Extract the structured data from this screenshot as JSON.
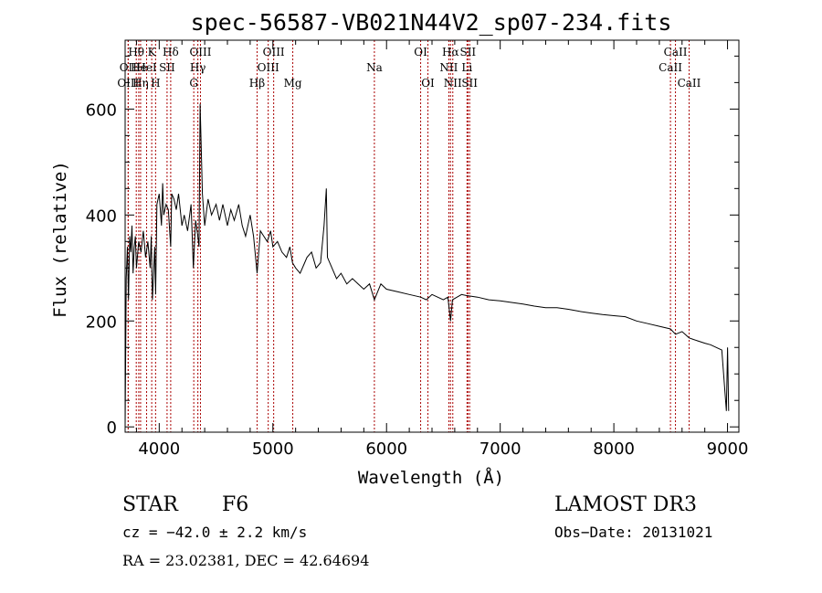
{
  "chart_data": {
    "type": "line",
    "title": "spec-56587-VB021N44V2_sp07-234.fits",
    "xlabel": "Wavelength (Å)",
    "ylabel": "Flux (relative)",
    "xlim": [
      3700,
      9100
    ],
    "ylim": [
      -10,
      730
    ],
    "xticks": [
      4000,
      5000,
      6000,
      7000,
      8000,
      9000
    ],
    "yticks": [
      0,
      200,
      400,
      600
    ],
    "series": [
      {
        "name": "flux",
        "x": [
          3700,
          3710,
          3720,
          3730,
          3740,
          3750,
          3760,
          3770,
          3780,
          3790,
          3800,
          3820,
          3840,
          3860,
          3880,
          3900,
          3920,
          3930,
          3940,
          3960,
          3968,
          3980,
          4000,
          4020,
          4030,
          4040,
          4060,
          4080,
          4101,
          4110,
          4130,
          4150,
          4170,
          4200,
          4220,
          4250,
          4280,
          4300,
          4320,
          4340,
          4350,
          4360,
          4380,
          4400,
          4430,
          4460,
          4500,
          4530,
          4560,
          4600,
          4630,
          4660,
          4700,
          4730,
          4760,
          4800,
          4830,
          4861,
          4890,
          4920,
          4950,
          4980,
          5000,
          5040,
          5080,
          5120,
          5150,
          5172,
          5200,
          5240,
          5280,
          5300,
          5340,
          5380,
          5420,
          5450,
          5470,
          5480,
          5520,
          5560,
          5600,
          5650,
          5700,
          5750,
          5800,
          5850,
          5893,
          5950,
          6000,
          6100,
          6200,
          6300,
          6350,
          6400,
          6450,
          6500,
          6540,
          6563,
          6580,
          6620,
          6660,
          6700,
          6800,
          6900,
          7000,
          7100,
          7200,
          7300,
          7400,
          7500,
          7600,
          7700,
          7800,
          7900,
          8000,
          8100,
          8200,
          8300,
          8400,
          8498,
          8542,
          8600,
          8662,
          8700,
          8800,
          8850,
          8900,
          8950,
          8990,
          9000,
          9010
        ],
        "y": [
          0,
          280,
          340,
          240,
          360,
          330,
          380,
          290,
          340,
          360,
          300,
          350,
          330,
          370,
          320,
          350,
          300,
          360,
          240,
          340,
          250,
          420,
          440,
          380,
          460,
          400,
          420,
          410,
          340,
          440,
          430,
          410,
          440,
          380,
          400,
          370,
          420,
          300,
          390,
          360,
          340,
          610,
          440,
          380,
          430,
          400,
          420,
          390,
          420,
          380,
          410,
          390,
          420,
          380,
          360,
          400,
          360,
          290,
          370,
          360,
          350,
          370,
          340,
          350,
          330,
          320,
          340,
          310,
          300,
          290,
          310,
          320,
          330,
          300,
          310,
          380,
          450,
          320,
          300,
          280,
          290,
          270,
          280,
          270,
          260,
          270,
          240,
          270,
          260,
          255,
          250,
          245,
          240,
          250,
          245,
          240,
          245,
          200,
          240,
          245,
          250,
          248,
          245,
          240,
          238,
          235,
          232,
          228,
          225,
          225,
          222,
          218,
          215,
          212,
          210,
          208,
          200,
          195,
          190,
          185,
          175,
          180,
          168,
          165,
          158,
          155,
          150,
          145,
          30,
          150,
          30
        ]
      }
    ],
    "line_labels": [
      {
        "label": "Hθ",
        "x": 3798,
        "row": 1
      },
      {
        "label": "OII",
        "x": 3727,
        "row": 2
      },
      {
        "label": "OIII",
        "x": 3727,
        "row": 3
      },
      {
        "label": "He",
        "x": 3820,
        "row": 2
      },
      {
        "label": "Hη",
        "x": 3836,
        "row": 3
      },
      {
        "label": "K",
        "x": 3934,
        "row": 1
      },
      {
        "label": "HeI",
        "x": 3889,
        "row": 2
      },
      {
        "label": "H",
        "x": 3968,
        "row": 3
      },
      {
        "label": "SII",
        "x": 4069,
        "row": 2
      },
      {
        "label": "Hδ",
        "x": 4101,
        "row": 1
      },
      {
        "label": "OIII",
        "x": 4363,
        "row": 1
      },
      {
        "label": "Hγ",
        "x": 4340,
        "row": 2
      },
      {
        "label": "G",
        "x": 4304,
        "row": 3
      },
      {
        "label": "OIII",
        "x": 5007,
        "row": 1
      },
      {
        "label": "OIII",
        "x": 4959,
        "row": 2
      },
      {
        "label": "Hβ",
        "x": 4861,
        "row": 3
      },
      {
        "label": "Mg",
        "x": 5175,
        "row": 3
      },
      {
        "label": "Na",
        "x": 5893,
        "row": 2
      },
      {
        "label": "OI",
        "x": 6300,
        "row": 1
      },
      {
        "label": "OI",
        "x": 6364,
        "row": 3
      },
      {
        "label": "Hα",
        "x": 6563,
        "row": 1
      },
      {
        "label": "SII",
        "x": 6716,
        "row": 1
      },
      {
        "label": "NII",
        "x": 6548,
        "row": 2
      },
      {
        "label": "Li",
        "x": 6708,
        "row": 2
      },
      {
        "label": "NII",
        "x": 6583,
        "row": 3
      },
      {
        "label": "SII",
        "x": 6731,
        "row": 3
      },
      {
        "label": "CaII",
        "x": 8542,
        "row": 1
      },
      {
        "label": "CaII",
        "x": 8498,
        "row": 2
      },
      {
        "label": "CaII",
        "x": 8662,
        "row": 3
      }
    ],
    "line_marker_color": "#aa0000",
    "spectrum_color": "#000000"
  },
  "info": {
    "class_label": "STAR",
    "subclass": "F6",
    "survey": "LAMOST DR3",
    "cz": "cz = −42.0 ± 2.2 km/s",
    "obs_date": "Obs−Date: 20131021",
    "coords": "RA =  23.02381, DEC =  42.64694"
  }
}
